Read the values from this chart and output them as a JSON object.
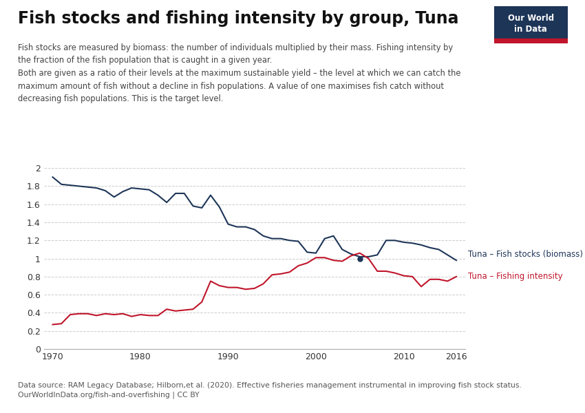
{
  "title": "Fish stocks and fishing intensity by group, Tuna",
  "subtitle_line1": "Fish stocks are measured by biomass: the number of individuals multiplied by their mass. Fishing intensity by",
  "subtitle_line2": "the fraction of the fish population that is caught in a given year.",
  "subtitle_line3": "Both are given as a ratio of their levels at the maximum sustainable yield – the level at which we can catch the",
  "subtitle_line4": "maximum amount of fish without a decline in fish populations. A value of one maximises fish catch without",
  "subtitle_line5": "decreasing fish populations. This is the target level.",
  "datasource": "Data source: RAM Legacy Database; Hilborn,et al. (2020). Effective fisheries management instrumental in improving fish stock status.",
  "datasource2": "OurWorldInData.org/fish-and-overfishing | CC BY",
  "biomass_years": [
    1970,
    1971,
    1972,
    1973,
    1974,
    1975,
    1976,
    1977,
    1978,
    1979,
    1980,
    1981,
    1982,
    1983,
    1984,
    1985,
    1986,
    1987,
    1988,
    1989,
    1990,
    1991,
    1992,
    1993,
    1994,
    1995,
    1996,
    1997,
    1998,
    1999,
    2000,
    2001,
    2002,
    2003,
    2004,
    2005,
    2006,
    2007,
    2008,
    2009,
    2010,
    2011,
    2012,
    2013,
    2014,
    2015,
    2016
  ],
  "biomass_values": [
    1.9,
    1.82,
    1.81,
    1.8,
    1.79,
    1.78,
    1.75,
    1.68,
    1.74,
    1.78,
    1.77,
    1.76,
    1.7,
    1.62,
    1.72,
    1.72,
    1.58,
    1.56,
    1.7,
    1.57,
    1.38,
    1.35,
    1.35,
    1.32,
    1.25,
    1.22,
    1.22,
    1.2,
    1.19,
    1.07,
    1.06,
    1.22,
    1.25,
    1.1,
    1.05,
    1.02,
    1.02,
    1.04,
    1.2,
    1.2,
    1.18,
    1.17,
    1.15,
    1.12,
    1.1,
    1.04,
    0.98
  ],
  "intensity_years": [
    1970,
    1971,
    1972,
    1973,
    1974,
    1975,
    1976,
    1977,
    1978,
    1979,
    1980,
    1981,
    1982,
    1983,
    1984,
    1985,
    1986,
    1987,
    1988,
    1989,
    1990,
    1991,
    1992,
    1993,
    1994,
    1995,
    1996,
    1997,
    1998,
    1999,
    2000,
    2001,
    2002,
    2003,
    2004,
    2005,
    2006,
    2007,
    2008,
    2009,
    2010,
    2011,
    2012,
    2013,
    2014,
    2015,
    2016
  ],
  "intensity_values": [
    0.27,
    0.28,
    0.38,
    0.39,
    0.39,
    0.37,
    0.39,
    0.38,
    0.39,
    0.36,
    0.38,
    0.37,
    0.37,
    0.44,
    0.42,
    0.43,
    0.44,
    0.52,
    0.75,
    0.7,
    0.68,
    0.68,
    0.66,
    0.67,
    0.72,
    0.82,
    0.83,
    0.85,
    0.92,
    0.95,
    1.01,
    1.01,
    0.98,
    0.97,
    1.03,
    1.06,
    1.0,
    0.86,
    0.86,
    0.84,
    0.81,
    0.8,
    0.69,
    0.77,
    0.77,
    0.75,
    0.8
  ],
  "biomass_color": "#1d3557",
  "intensity_color": "#c0152a",
  "background_color": "#ffffff",
  "grid_color": "#cccccc",
  "ylim": [
    0,
    2.1
  ],
  "yticks": [
    0,
    0.2,
    0.4,
    0.6,
    0.8,
    1.0,
    1.2,
    1.4,
    1.6,
    1.8,
    2.0
  ],
  "xlim": [
    1969,
    2017
  ],
  "xticks": [
    1970,
    1980,
    1990,
    2000,
    2010,
    2016
  ],
  "label_biomass": "Tuna – Fish stocks (biomass)",
  "label_intensity": "Tuna – Fishing intensity",
  "owid_box_color": "#1d3557",
  "owid_red_color": "#c0152a",
  "dot_year": 2005,
  "dot_value": 1.0
}
